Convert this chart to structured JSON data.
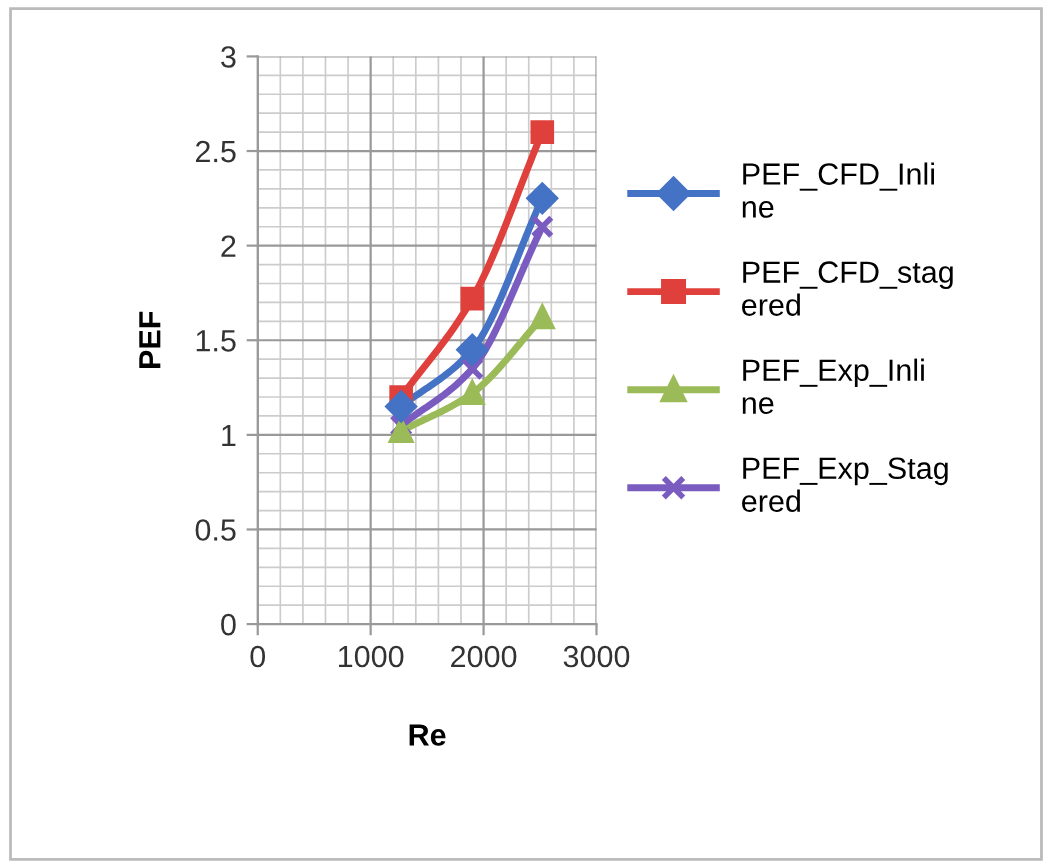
{
  "chart_data": {
    "type": "line",
    "xlabel": "Re",
    "ylabel": "PEF",
    "x": [
      1270,
      1900,
      2520
    ],
    "series": [
      {
        "name": "PEF_CFD_Inline",
        "color": "#4472c4",
        "marker": "diamond",
        "values": [
          1.15,
          1.45,
          2.25
        ]
      },
      {
        "name": "PEF_CFD_stagered",
        "color": "#e0403c",
        "marker": "square",
        "values": [
          1.2,
          1.72,
          2.6
        ]
      },
      {
        "name": "PEF_Exp_Inline",
        "color": "#9bbb59",
        "marker": "triangle",
        "values": [
          1.02,
          1.22,
          1.62
        ]
      },
      {
        "name": "PEF_Exp_Stagered",
        "color": "#7a5cc0",
        "marker": "cross",
        "values": [
          1.05,
          1.35,
          2.1
        ]
      }
    ],
    "xlim": [
      0,
      3000
    ],
    "xticks": [
      0,
      1000,
      2000,
      3000
    ],
    "ylim": [
      0,
      3
    ],
    "yticks": [
      0,
      0.5,
      1,
      1.5,
      2,
      2.5,
      3
    ],
    "grid": true,
    "legend": "right",
    "line_style": "solid"
  }
}
